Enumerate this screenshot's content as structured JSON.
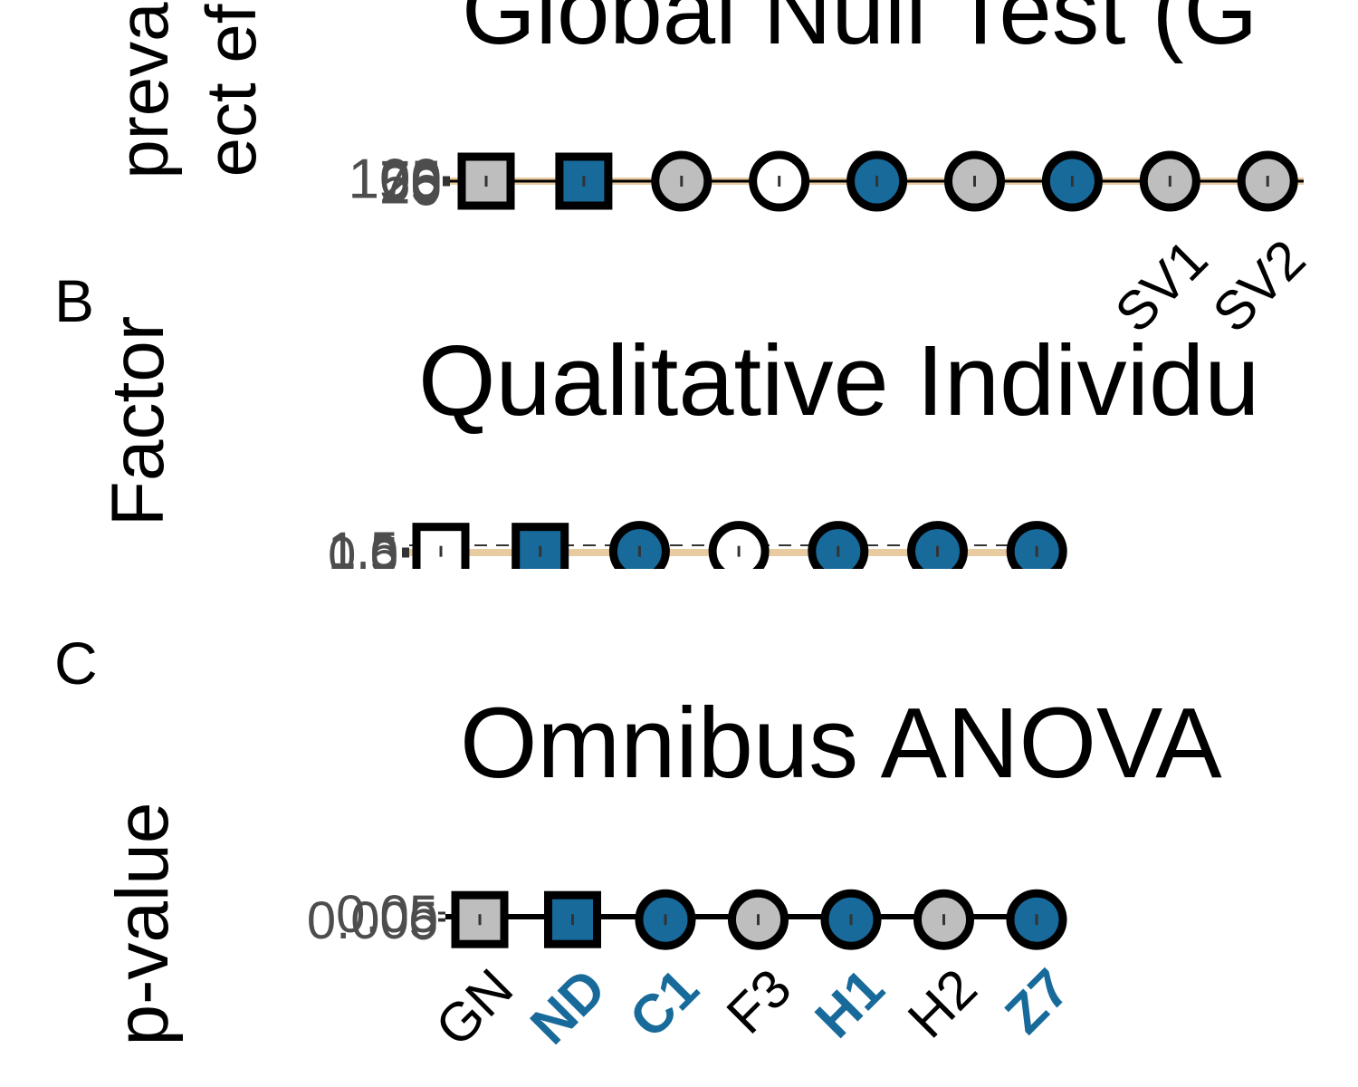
{
  "chart_data": [
    {
      "type": "dot",
      "panel": null,
      "title": "Global Null Test (G",
      "y_label": [
        "preva",
        "ect ef"
      ],
      "categories": [
        null,
        null,
        null,
        null,
        null,
        null,
        null,
        "SV1",
        "SV2"
      ],
      "values": [
        50,
        50,
        50,
        50,
        50,
        50,
        50,
        50,
        50
      ],
      "shapes": [
        "square",
        "square",
        "circle",
        "circle",
        "circle",
        "circle",
        "circle",
        "circle",
        "circle"
      ],
      "colors": [
        "#bebebe",
        "#176a9a",
        "#bebebe",
        "#ffffff",
        "#176a9a",
        "#bebebe",
        "#176a9a",
        "#bebebe",
        "#bebebe"
      ],
      "label_colors": [
        null,
        null,
        null,
        null,
        null,
        null,
        null,
        "#000000",
        "#000000"
      ],
      "line_color": "#e8cba0",
      "ylim": [
        0,
        100
      ],
      "yticks": [
        0,
        25,
        50,
        75,
        100
      ]
    },
    {
      "type": "dot",
      "panel": "B",
      "title": "Qualitative Individu",
      "y_label": [
        "Factor"
      ],
      "categories": [
        null,
        null,
        null,
        null,
        null,
        null,
        null
      ],
      "values": [
        1,
        1,
        1,
        1,
        1,
        1,
        1
      ],
      "shapes": [
        "square",
        "square",
        "circle",
        "circle",
        "circle",
        "circle",
        "circle"
      ],
      "colors": [
        "#ffffff",
        "#176a9a",
        "#176a9a",
        "#ffffff",
        "#176a9a",
        "#176a9a",
        "#176a9a"
      ],
      "label_colors": [
        null,
        null,
        null,
        null,
        null,
        null,
        null
      ],
      "line_color": "#e8cba0",
      "ylim": [
        0,
        1.5
      ],
      "yticks": [
        0,
        0.5,
        {
          "value": 1,
          "label": "1.0"
        },
        1.5
      ]
    },
    {
      "type": "dot",
      "panel": "C",
      "title": "Omnibus ANOVA",
      "y_label": [
        "p-value"
      ],
      "categories": [
        "GN",
        "ND",
        "C1",
        "F3",
        "H1",
        "H2",
        "Z7"
      ],
      "values": [
        0.005,
        0.005,
        0.005,
        0.005,
        0.005,
        0.005,
        0.005
      ],
      "shapes": [
        "square",
        "square",
        "circle",
        "circle",
        "circle",
        "circle",
        "circle"
      ],
      "colors": [
        "#bebebe",
        "#176a9a",
        "#176a9a",
        "#bebebe",
        "#176a9a",
        "#bebebe",
        "#176a9a"
      ],
      "label_colors": [
        "#000000",
        "#176a9a",
        "#176a9a",
        "#000000",
        "#176a9a",
        "#000000",
        "#176a9a"
      ],
      "line_color": "#000000",
      "ylim": [
        0,
        0.05
      ],
      "yticks": [
        0,
        0.005,
        0.05
      ]
    }
  ]
}
